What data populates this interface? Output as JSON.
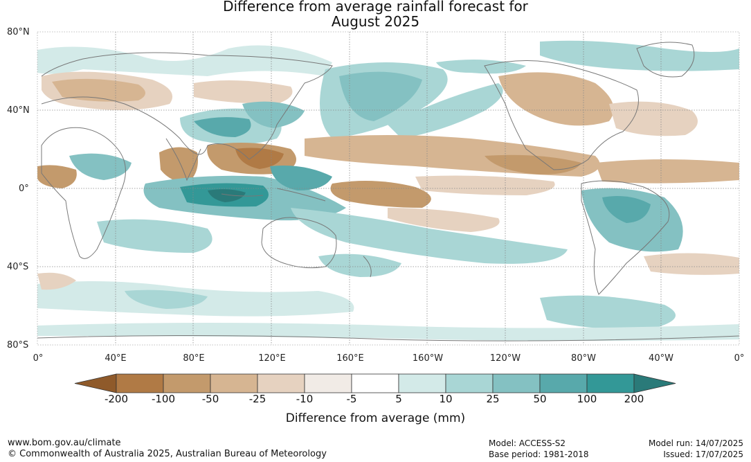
{
  "title_line1": "Difference from average rainfall forecast for",
  "title_line2": "August 2025",
  "lat_labels": [
    "80°N",
    "40°N",
    "0°",
    "40°S",
    "80°S"
  ],
  "lon_labels": [
    "0°",
    "40°E",
    "80°E",
    "120°E",
    "160°E",
    "160°W",
    "120°W",
    "80°W",
    "40°W",
    "0°"
  ],
  "colorbar": {
    "title": "Difference from average (mm)",
    "ticks": [
      "-200",
      "-100",
      "-50",
      "-25",
      "-10",
      "-5",
      "5",
      "10",
      "25",
      "50",
      "100",
      "200"
    ],
    "colors": [
      "#8f5a2a",
      "#b07a45",
      "#c39a6c",
      "#d6b592",
      "#e6d2c0",
      "#f1ebe6",
      "#ffffff",
      "#d3eae8",
      "#a9d6d5",
      "#84c1c2",
      "#58a9ab",
      "#339897",
      "#2a7a79"
    ]
  },
  "footer": {
    "url": "www.bom.gov.au/climate",
    "copyright": "© Commonwealth of Australia 2025, Australian Bureau of Meteorology",
    "model": "Model: ACCESS-S2",
    "base_period": "Base period: 1981-2018",
    "model_run": "Model run: 14/07/2025",
    "issued": "Issued: 17/07/2025"
  }
}
